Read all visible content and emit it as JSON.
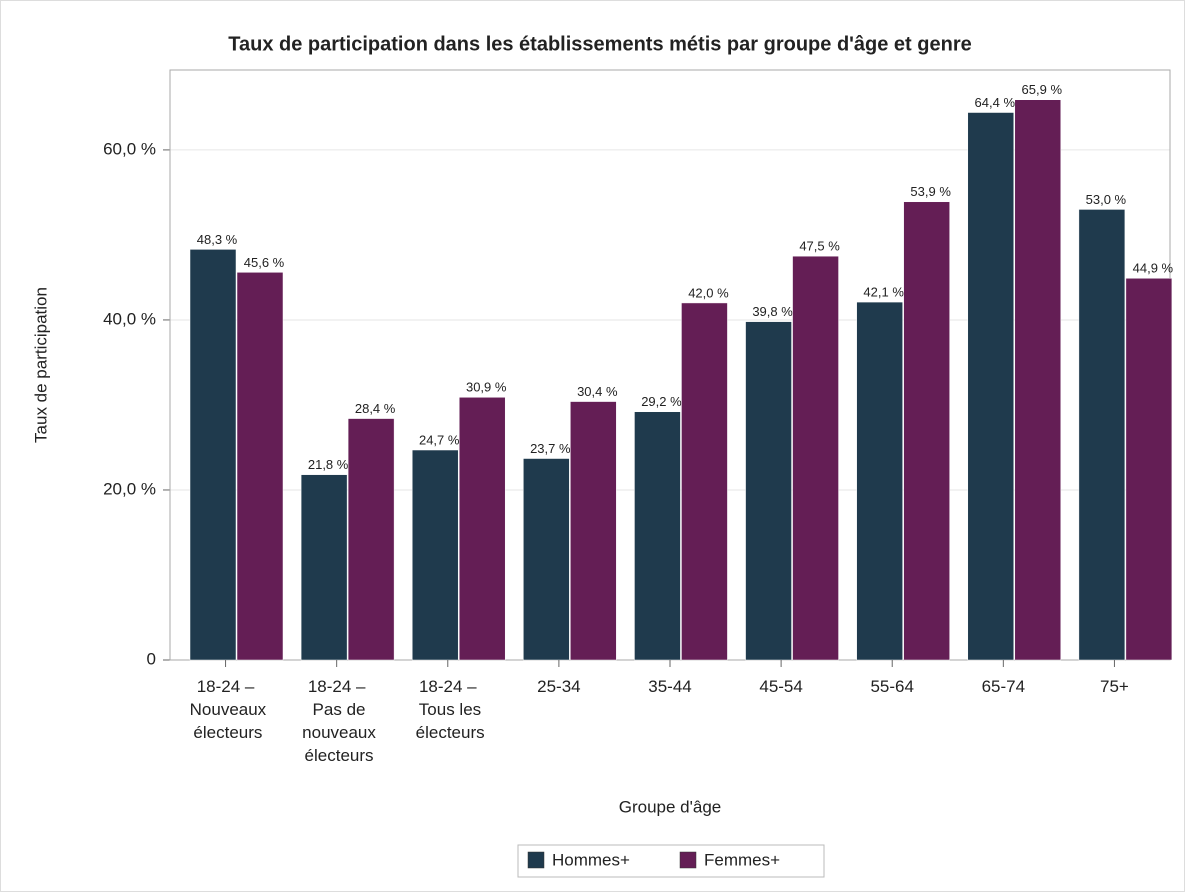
{
  "chart_data": {
    "type": "bar",
    "title": "Taux de participation dans les établissements métis par groupe d'âge et genre",
    "x_label": "Groupe d'âge",
    "y_label": "Taux de participation",
    "categories": [
      "18-24 –\nNouveaux\nélecteurs",
      "18-24 –\nPas de\nnouveaux\nélecteurs",
      "18-24 –\nTous les\nélecteurs",
      "25-34",
      "35-44",
      "45-54",
      "55-64",
      "65-74",
      "75+"
    ],
    "series": [
      {
        "name": "Hommes+",
        "color": "#1f3a4d",
        "values": [
          48.3,
          21.8,
          24.7,
          23.7,
          29.2,
          39.8,
          42.1,
          64.4,
          53.0
        ],
        "value_labels": [
          "48,3 %",
          "21,8 %",
          "24,7 %",
          "23,7 %",
          "29,2 %",
          "39,8 %",
          "42,1 %",
          "64,4 %",
          "53,0 %"
        ]
      },
      {
        "name": "Femmes+",
        "color": "#641e55",
        "values": [
          45.6,
          28.4,
          30.9,
          30.4,
          42.0,
          47.5,
          53.9,
          65.9,
          44.9
        ],
        "value_labels": [
          "45,6 %",
          "28,4 %",
          "30,9 %",
          "30,4 %",
          "42,0 %",
          "47,5 %",
          "53,9 %",
          "65,9 %",
          "44,9 %"
        ]
      }
    ],
    "ylim": [
      0,
      69.4
    ],
    "yticks": [
      0,
      {
        "value": 20,
        "label": "20,0 %"
      },
      {
        "value": 40,
        "label": "40,0 %"
      },
      {
        "value": 60,
        "label": "60,0 %"
      }
    ],
    "grid": true,
    "legend": "bottom"
  }
}
